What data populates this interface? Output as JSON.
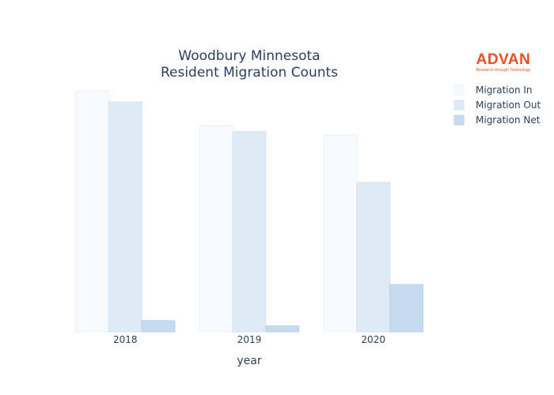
{
  "logo": {
    "name": "ADVAN",
    "tagline": "Research through Technology"
  },
  "colors": {
    "background": "#ffffff",
    "text": "#2a3f5f",
    "logo": "#e8501f",
    "series": [
      "#f7fbff",
      "#deebf7",
      "#c6dbef"
    ],
    "series_stroke": [
      "#eaf1f9",
      "#d3e2f1",
      "#b9d2e8"
    ]
  },
  "chart_data": {
    "type": "bar",
    "title": [
      "Woodbury Minnesota",
      "Resident Migration Counts"
    ],
    "xlabel": "year",
    "ylabel": "",
    "categories": [
      "2018",
      "2019",
      "2020"
    ],
    "series": [
      {
        "name": "Migration In",
        "values": [
          4080,
          3490,
          3330
        ]
      },
      {
        "name": "Migration Out",
        "values": [
          3890,
          3390,
          2530
        ]
      },
      {
        "name": "Migration Net",
        "values": [
          190,
          100,
          800
        ]
      }
    ],
    "ylim": [
      0,
      4080
    ],
    "y_ticks_shown": false,
    "grid": false,
    "legend_position": "top-right"
  }
}
